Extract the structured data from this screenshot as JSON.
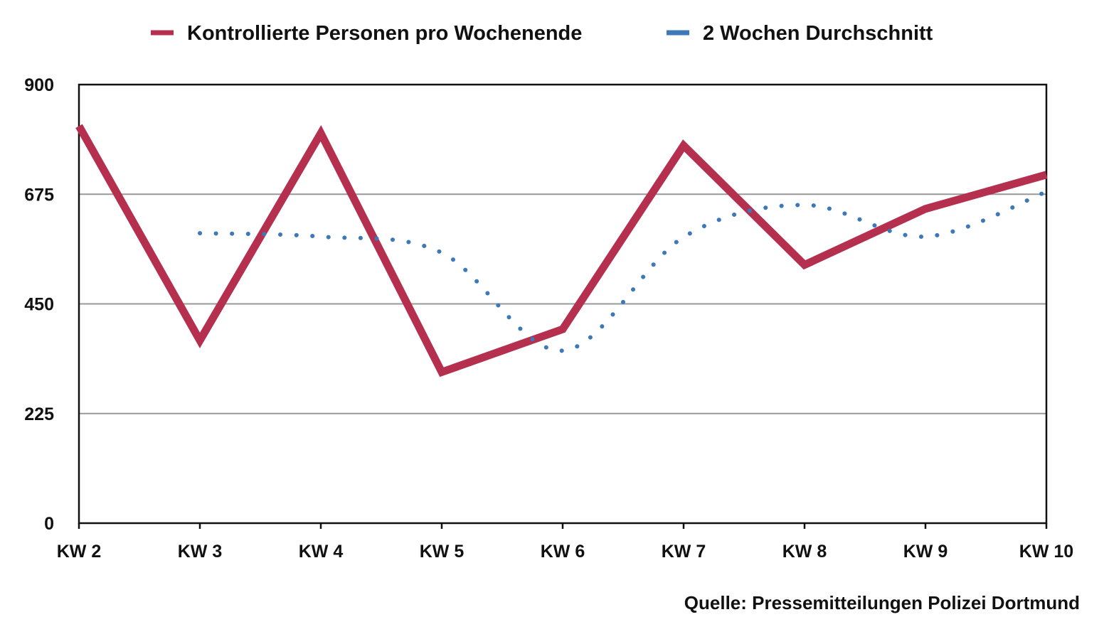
{
  "chart_data": {
    "type": "line",
    "title": "",
    "xlabel": "",
    "ylabel": "",
    "categories": [
      "KW 2",
      "KW 3",
      "KW 4",
      "KW 5",
      "KW 6",
      "KW 7",
      "KW 8",
      "KW 9",
      "KW 10"
    ],
    "ylim": [
      0,
      900
    ],
    "yticks": [
      "0",
      "225",
      "450",
      "675",
      "900"
    ],
    "grid": true,
    "legend_position": "top",
    "series": [
      {
        "name": "Kontrollierte Personen pro Wochenende",
        "style": "solid",
        "color": "#b5304f",
        "values": [
          815,
          375,
          800,
          310,
          398,
          775,
          530,
          645,
          715
        ]
      },
      {
        "name": "2 Wochen Durchschnitt",
        "style": "dotted",
        "color": "#3d78b8",
        "values": [
          null,
          595,
          588,
          555,
          354,
          587,
          653,
          588,
          680
        ]
      }
    ]
  },
  "source": "Quelle: Pressemitteilungen Polizei Dortmund"
}
